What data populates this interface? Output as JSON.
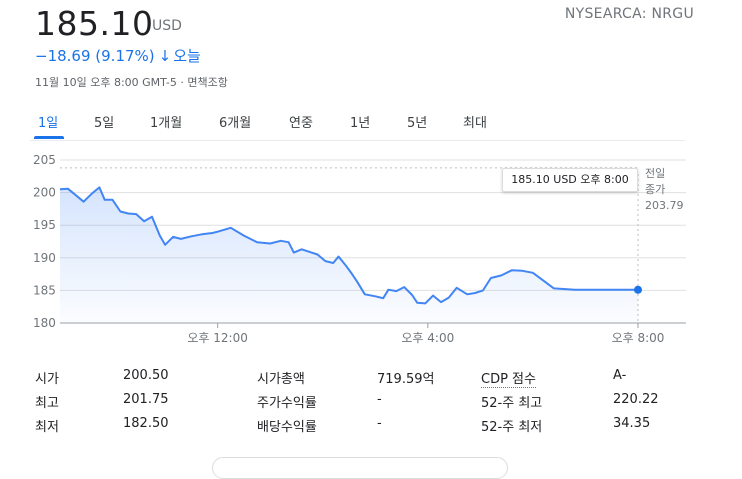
{
  "header": {
    "price": "185.10",
    "currency": "USD",
    "exchange": "NYSEARCA: NRGU",
    "change": "−18.69 (9.17%)",
    "change_arrow": "↓",
    "period": "오늘",
    "meta": "11월 10일 오후 8:00 GMT-5 · 면책조항"
  },
  "tabs": [
    {
      "label": "1일",
      "active": true
    },
    {
      "label": "5일"
    },
    {
      "label": "1개월"
    },
    {
      "label": "6개월"
    },
    {
      "label": "연중"
    },
    {
      "label": "1년"
    },
    {
      "label": "5년"
    },
    {
      "label": "최대"
    }
  ],
  "tooltip": {
    "text": "185.10 USD  오후 8:00"
  },
  "prev_close": {
    "label_line1": "전일",
    "label_line2": "종가",
    "value": "203.79"
  },
  "colors": {
    "accent": "#1a73e8",
    "line": "#4285f4",
    "grid": "#e0e0e0",
    "ref_line": "#bdbdbd"
  },
  "chart_data": {
    "type": "line",
    "ylim": [
      180,
      205
    ],
    "y_ticks": [
      "205",
      "200",
      "195",
      "190",
      "185",
      "180"
    ],
    "x_tick_labels": [
      "오후 12:00",
      "오후 4:00",
      "오후 8:00"
    ],
    "x_tick_hours": [
      12,
      16,
      20
    ],
    "x_range_hours": [
      9,
      20
    ],
    "reference_line": 203.79,
    "last_point": {
      "x": 20,
      "y": 185.1
    },
    "x": [
      9.0,
      9.15,
      9.3,
      9.45,
      9.6,
      9.75,
      9.85,
      10.0,
      10.15,
      10.3,
      10.45,
      10.6,
      10.75,
      10.9,
      11.0,
      11.15,
      11.3,
      11.5,
      11.7,
      11.9,
      12.0,
      12.25,
      12.5,
      12.75,
      13.0,
      13.2,
      13.35,
      13.45,
      13.6,
      13.75,
      13.9,
      14.05,
      14.2,
      14.3,
      14.45,
      14.55,
      14.65,
      14.8,
      15.0,
      15.15,
      15.25,
      15.4,
      15.55,
      15.7,
      15.8,
      15.95,
      16.1,
      16.25,
      16.4,
      16.55,
      16.75,
      16.9,
      17.05,
      17.2,
      17.4,
      17.6,
      17.8,
      18.0,
      18.4,
      18.8,
      19.2,
      19.6,
      20.0
    ],
    "y": [
      200.5,
      200.6,
      199.6,
      198.6,
      199.8,
      200.8,
      198.9,
      198.9,
      197.1,
      196.8,
      196.7,
      195.6,
      196.3,
      193.4,
      192.0,
      193.2,
      192.9,
      193.3,
      193.6,
      193.8,
      194.0,
      194.6,
      193.4,
      192.4,
      192.2,
      192.6,
      192.4,
      190.8,
      191.3,
      190.9,
      190.5,
      189.5,
      189.2,
      190.2,
      188.7,
      187.6,
      186.4,
      184.4,
      184.1,
      183.8,
      185.1,
      184.9,
      185.5,
      184.3,
      183.1,
      183.0,
      184.2,
      183.2,
      183.9,
      185.4,
      184.4,
      184.6,
      185.0,
      186.9,
      187.3,
      188.1,
      188.0,
      187.7,
      185.3,
      185.1,
      185.1,
      185.1,
      185.1
    ]
  },
  "stats": {
    "rows": [
      [
        {
          "label": "시가",
          "value": "200.50"
        },
        {
          "label": "시가총액",
          "value": "719.59억"
        },
        {
          "label": "CDP 점수",
          "value": "A-",
          "dotted": true
        }
      ],
      [
        {
          "label": "최고",
          "value": "201.75"
        },
        {
          "label": "주가수익률",
          "value": "-"
        },
        {
          "label": "52-주 최고",
          "value": "220.22"
        }
      ],
      [
        {
          "label": "최저",
          "value": "182.50"
        },
        {
          "label": "배당수익률",
          "value": "-"
        },
        {
          "label": "52-주 최저",
          "value": "34.35"
        }
      ]
    ]
  }
}
